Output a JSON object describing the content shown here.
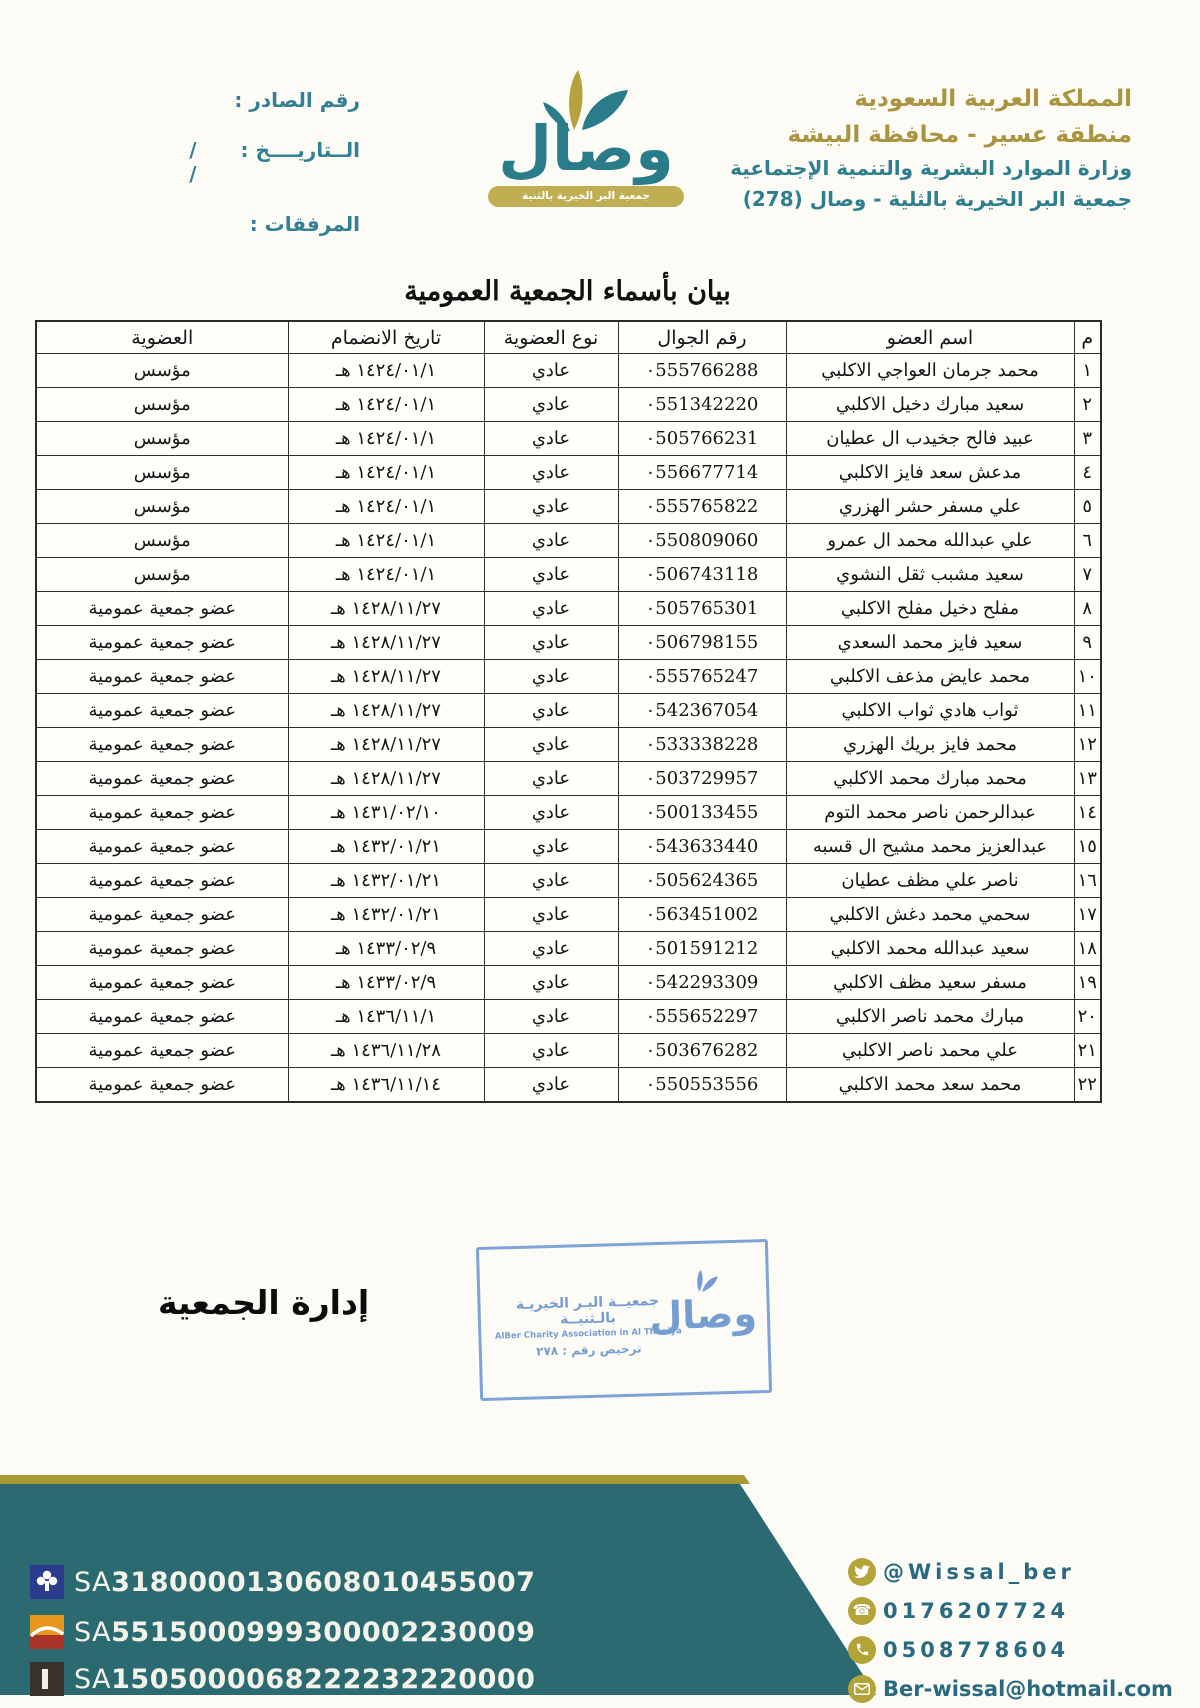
{
  "colors": {
    "header_gold": "#ab9440",
    "header_teal": "#2e7f8e",
    "logo_teal": "#2b7c8a",
    "logo_gold": "#b5a23c",
    "banner_teal": "#2c6a72",
    "banner_gold_line": "#a89a33",
    "stamp_blue": "#6491cc",
    "contact_teal": "#2a6a80",
    "icon_gold": "#b3a339"
  },
  "letterhead": {
    "org": {
      "line1": "المملكة العربية السعودية",
      "line2": "منطقة عسير - محافظة البيشة",
      "line3": "وزارة الموارد البشرية والتنمية الإجتماعية",
      "line4": "جمعية البر الخيرية بالثلية - وصال (278)"
    },
    "serial": {
      "serial_label": "رقم الصادر :",
      "date_label": "الــتاريــــخ :",
      "date_value": "/      /",
      "attachments_label": "المرفقات :"
    },
    "logo": {
      "wordmark": "وصال",
      "banner": "جمعية البر الخيرية بالثنية"
    }
  },
  "title": "بيان بأسماء الجمعية العمومية",
  "table": {
    "headers": {
      "no": "م",
      "name": "اسم العضو",
      "phone": "رقم الجوال",
      "type": "نوع العضوية",
      "join_date": "تاريخ الانضمام",
      "membership": "العضوية"
    },
    "rows": [
      {
        "no": "١",
        "name": "محمد جرمان العواجي الاكلبي",
        "phone": "٠555766288",
        "type": "عادي",
        "join_date": "١٤٢٤/٠١/١ هـ",
        "membership": "مؤسس"
      },
      {
        "no": "٢",
        "name": "سعيد مبارك دخيل الاكلبي",
        "phone": "٠551342220",
        "type": "عادي",
        "join_date": "١٤٢٤/٠١/١ هـ",
        "membership": "مؤسس"
      },
      {
        "no": "٣",
        "name": "عبيد فالح جخيدب ال عطيان",
        "phone": "٠505766231",
        "type": "عادي",
        "join_date": "١٤٢٤/٠١/١ هـ",
        "membership": "مؤسس"
      },
      {
        "no": "٤",
        "name": "مدعش سعد فايز الاكلبي",
        "phone": "٠556677714",
        "type": "عادي",
        "join_date": "١٤٢٤/٠١/١ هـ",
        "membership": "مؤسس"
      },
      {
        "no": "٥",
        "name": "علي مسفر حشر الهزري",
        "phone": "٠555765822",
        "type": "عادي",
        "join_date": "١٤٢٤/٠١/١ هـ",
        "membership": "مؤسس"
      },
      {
        "no": "٦",
        "name": "علي عبدالله محمد ال عمرو",
        "phone": "٠550809060",
        "type": "عادي",
        "join_date": "١٤٢٤/٠١/١ هـ",
        "membership": "مؤسس"
      },
      {
        "no": "٧",
        "name": "سعيد مشبب ثقل النشوي",
        "phone": "٠506743118",
        "type": "عادي",
        "join_date": "١٤٢٤/٠١/١ هـ",
        "membership": "مؤسس"
      },
      {
        "no": "٨",
        "name": "مفلح دخيل مفلح الاكلبي",
        "phone": "٠505765301",
        "type": "عادي",
        "join_date": "١٤٢٨/١١/٢٧ هـ",
        "membership": "عضو جمعية عمومية"
      },
      {
        "no": "٩",
        "name": "سعيد فايز محمد السعدي",
        "phone": "٠506798155",
        "type": "عادي",
        "join_date": "١٤٢٨/١١/٢٧ هـ",
        "membership": "عضو جمعية عمومية"
      },
      {
        "no": "١٠",
        "name": "محمد عايض مذعف الاكلبي",
        "phone": "٠555765247",
        "type": "عادي",
        "join_date": "١٤٢٨/١١/٢٧ هـ",
        "membership": "عضو جمعية عمومية"
      },
      {
        "no": "١١",
        "name": "ثواب هادي ثواب الاكلبي",
        "phone": "٠542367054",
        "type": "عادي",
        "join_date": "١٤٢٨/١١/٢٧ هـ",
        "membership": "عضو جمعية عمومية"
      },
      {
        "no": "١٢",
        "name": "محمد فايز بريك الهزري",
        "phone": "٠533338228",
        "type": "عادي",
        "join_date": "١٤٢٨/١١/٢٧ هـ",
        "membership": "عضو جمعية عمومية"
      },
      {
        "no": "١٣",
        "name": "محمد مبارك محمد الاكلبي",
        "phone": "٠503729957",
        "type": "عادي",
        "join_date": "١٤٢٨/١١/٢٧ هـ",
        "membership": "عضو جمعية عمومية"
      },
      {
        "no": "١٤",
        "name": "عبدالرحمن ناصر محمد التوم",
        "phone": "٠500133455",
        "type": "عادي",
        "join_date": "١٤٣١/٠٢/١٠ هـ",
        "membership": "عضو جمعية عمومية"
      },
      {
        "no": "١٥",
        "name": "عبدالعزيز محمد مشيح ال قسبه",
        "phone": "٠543633440",
        "type": "عادي",
        "join_date": "١٤٣٢/٠١/٢١ هـ",
        "membership": "عضو جمعية عمومية"
      },
      {
        "no": "١٦",
        "name": "ناصر علي مظف عطيان",
        "phone": "٠505624365",
        "type": "عادي",
        "join_date": "١٤٣٢/٠١/٢١ هـ",
        "membership": "عضو جمعية عمومية"
      },
      {
        "no": "١٧",
        "name": "سحمي محمد دغش الاكلبي",
        "phone": "٠563451002",
        "type": "عادي",
        "join_date": "١٤٣٢/٠١/٢١ هـ",
        "membership": "عضو جمعية عمومية"
      },
      {
        "no": "١٨",
        "name": "سعيد عبدالله محمد الاكلبي",
        "phone": "٠501591212",
        "type": "عادي",
        "join_date": "١٤٣٣/٠٢/٩ هـ",
        "membership": "عضو جمعية عمومية"
      },
      {
        "no": "١٩",
        "name": "مسفر سعيد مظف الاكلبي",
        "phone": "٠542293309",
        "type": "عادي",
        "join_date": "١٤٣٣/٠٢/٩ هـ",
        "membership": "عضو جمعية عمومية"
      },
      {
        "no": "٢٠",
        "name": "مبارك محمد ناصر الاكلبي",
        "phone": "٠555652297",
        "type": "عادي",
        "join_date": "١٤٣٦/١١/١ هـ",
        "membership": "عضو جمعية عمومية"
      },
      {
        "no": "٢١",
        "name": "علي محمد ناصر الاكلبي",
        "phone": "٠503676282",
        "type": "عادي",
        "join_date": "١٤٣٦/١١/٢٨ هـ",
        "membership": "عضو جمعية عمومية"
      },
      {
        "no": "٢٢",
        "name": "محمد سعد محمد الاكلبي",
        "phone": "٠550553556",
        "type": "عادي",
        "join_date": "١٤٣٦/١١/١٤ هـ",
        "membership": "عضو جمعية عمومية"
      }
    ]
  },
  "signature_label": "إدارة الجمعية",
  "stamp": {
    "line1": "جمعيــة البـر الخيريـة بالـثنيــة",
    "line2": "AlBer Charity Association in Al Thaniya",
    "line3": "ترخيص رقم : ٢٧٨",
    "wordmark": "وصال"
  },
  "footer": {
    "ibans": [
      {
        "bank_icon": "alrajhi-bank-icon",
        "prefix": "SA",
        "number": "3180000130608010455007"
      },
      {
        "bank_icon": "albilad-bank-icon",
        "prefix": "SA",
        "number": "5515000999300002230009"
      },
      {
        "bank_icon": "alinma-bank-icon",
        "prefix": "SA",
        "number": "1505000068222232220000"
      }
    ],
    "contacts": [
      {
        "icon": "twitter-icon",
        "value": "@Wissal_ber"
      },
      {
        "icon": "telephone-icon",
        "value": "0176207724"
      },
      {
        "icon": "mobile-icon",
        "value": "0508778604"
      },
      {
        "icon": "email-icon",
        "value": "Ber-wissal@hotmail.com"
      }
    ]
  }
}
